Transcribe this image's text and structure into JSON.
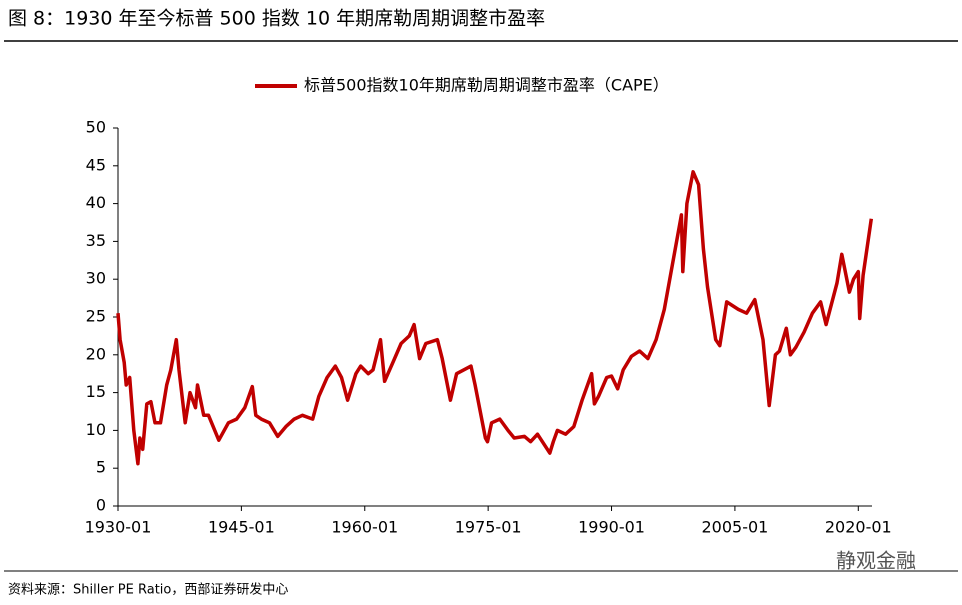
{
  "chart_data": {
    "type": "line",
    "title": "图 8：1930 年至今标普 500 指数 10 年期席勒周期调整市盈率",
    "source": "资料来源：Shiller PE Ratio，西部证券研发中心",
    "watermark": "静观金融",
    "legend": "top",
    "grid": false,
    "x": [
      "1930-01",
      "1930-04",
      "1930-10",
      "1931-01",
      "1931-06",
      "1931-12",
      "1932-06",
      "1932-09",
      "1933-01",
      "1933-07",
      "1934-01",
      "1934-07",
      "1935-03",
      "1935-12",
      "1936-06",
      "1937-02",
      "1937-06",
      "1938-03",
      "1938-10",
      "1939-06",
      "1939-09",
      "1940-06",
      "1941-01",
      "1942-04",
      "1943-06",
      "1944-06",
      "1945-06",
      "1946-05",
      "1946-10",
      "1947-06",
      "1948-06",
      "1949-06",
      "1950-06",
      "1951-06",
      "1952-06",
      "1953-09",
      "1954-06",
      "1955-06",
      "1956-06",
      "1957-03",
      "1957-12",
      "1958-12",
      "1959-07",
      "1960-06",
      "1961-01",
      "1961-12",
      "1962-06",
      "1963-06",
      "1964-06",
      "1965-06",
      "1966-01",
      "1966-09",
      "1967-06",
      "1968-11",
      "1969-06",
      "1970-06",
      "1971-03",
      "1972-12",
      "1973-06",
      "1974-09",
      "1974-12",
      "1975-06",
      "1976-06",
      "1977-06",
      "1978-03",
      "1979-06",
      "1980-03",
      "1981-01",
      "1982-07",
      "1982-12",
      "1983-06",
      "1984-06",
      "1985-06",
      "1986-06",
      "1987-08",
      "1987-12",
      "1988-06",
      "1989-06",
      "1990-01",
      "1990-10",
      "1991-06",
      "1992-06",
      "1993-06",
      "1994-06",
      "1995-06",
      "1996-06",
      "1997-06",
      "1998-07",
      "1998-09",
      "1999-03",
      "1999-12",
      "2000-08",
      "2001-03",
      "2001-09",
      "2002-09",
      "2003-03",
      "2004-01",
      "2005-06",
      "2006-06",
      "2007-06",
      "2008-06",
      "2009-03",
      "2009-12",
      "2010-06",
      "2011-04",
      "2011-10",
      "2012-06",
      "2013-06",
      "2014-06",
      "2015-06",
      "2016-02",
      "2017-06",
      "2018-01",
      "2018-12",
      "2019-06",
      "2020-01",
      "2020-03",
      "2020-08",
      "2021-08"
    ],
    "series": [
      {
        "name": "标普500指数10年期席勒周期调整市盈率（CAPE）",
        "color": "#c00000",
        "values": [
          25.5,
          22,
          19,
          16,
          17,
          10,
          5.6,
          9,
          7.5,
          13.5,
          13.8,
          11,
          11,
          16,
          18,
          22,
          18,
          11,
          15,
          13,
          16,
          12,
          12,
          8.7,
          11,
          11.5,
          13,
          15.8,
          12,
          11.5,
          11,
          9.2,
          10.5,
          11.5,
          12,
          11.5,
          14.5,
          17,
          18.5,
          17,
          14,
          17.5,
          18.5,
          17.5,
          18,
          22,
          16.5,
          19,
          21.5,
          22.5,
          24,
          19.5,
          21.5,
          22,
          19.5,
          14,
          17.5,
          18.5,
          16,
          9,
          8.5,
          11,
          11.5,
          10,
          9,
          9.2,
          8.5,
          9.5,
          7,
          8.5,
          10,
          9.5,
          10.5,
          14,
          17.5,
          13.5,
          14.5,
          17,
          17.2,
          15.5,
          18,
          19.8,
          20.5,
          19.5,
          22,
          26,
          32,
          38.5,
          31,
          40,
          44.2,
          42.5,
          34,
          29,
          22,
          21.2,
          27,
          26,
          25.5,
          27.3,
          22,
          13.3,
          20,
          20.5,
          23.5,
          20,
          21,
          23,
          25.5,
          27,
          24,
          29.5,
          33.3,
          28.3,
          30,
          31,
          24.8,
          30.5,
          38
        ]
      }
    ],
    "xlim": [
      "1930-01",
      "2021-09"
    ],
    "xticks": [
      "1930-01",
      "1945-01",
      "1960-01",
      "1975-01",
      "1990-01",
      "2005-01",
      "2020-01"
    ],
    "ylim": [
      0,
      50
    ],
    "yticks": [
      0,
      5,
      10,
      15,
      20,
      25,
      30,
      35,
      40,
      45,
      50
    ]
  }
}
